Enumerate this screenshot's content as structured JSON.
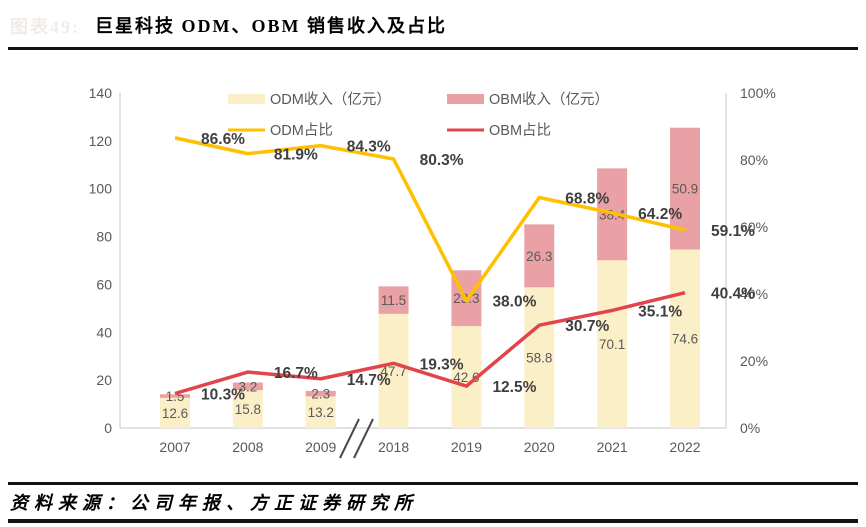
{
  "header": {
    "figure_label": "图表49:",
    "title": "巨星科技 ODM、OBM 销售收入及占比"
  },
  "footer": {
    "source": "资料来源：公司年报、方正证券研究所"
  },
  "chart_data": {
    "type": "bar+line",
    "title": "巨星科技 ODM、OBM 销售收入及占比",
    "categories": [
      "2007",
      "2008",
      "2009",
      "2018",
      "2019",
      "2020",
      "2021",
      "2022"
    ],
    "axis_break": {
      "between": [
        "2009",
        "2018"
      ],
      "symbol": "//"
    },
    "stacked_bars": true,
    "legend_position": "top",
    "grid": false,
    "left_axis": {
      "min": 0,
      "max": 140,
      "ticks": [
        0,
        20,
        40,
        60,
        80,
        100,
        120,
        140
      ]
    },
    "right_axis": {
      "min": 0,
      "max": 100,
      "ticks": [
        "0%",
        "20%",
        "40%",
        "60%",
        "80%",
        "100%"
      ]
    },
    "series": [
      {
        "name": "ODM收入（亿元）",
        "type": "bar",
        "axis": "left",
        "color": "#FBEFC8",
        "values": [
          12.6,
          15.8,
          13.2,
          47.7,
          42.6,
          58.8,
          70.1,
          74.6
        ]
      },
      {
        "name": "OBM收入（亿元）",
        "type": "bar",
        "axis": "left",
        "color": "#E9A1A6",
        "values": [
          1.5,
          3.2,
          2.3,
          11.5,
          23.3,
          26.3,
          38.4,
          50.9
        ]
      },
      {
        "name": "ODM占比",
        "type": "line",
        "axis": "right",
        "color": "#FFC000",
        "values": [
          86.6,
          81.9,
          84.3,
          80.3,
          38.0,
          68.8,
          64.2,
          59.1
        ]
      },
      {
        "name": "OBM占比",
        "type": "line",
        "axis": "right",
        "color": "#E2444C",
        "values": [
          10.3,
          16.7,
          14.7,
          19.3,
          12.5,
          30.7,
          35.1,
          40.4
        ]
      }
    ],
    "colors": {
      "axis_line": "#D9D9D9",
      "axis_text": "#595959",
      "bar_label": "#595959",
      "pct_label": "#3F3F3F",
      "break_mark": "#4A4A4A"
    }
  }
}
